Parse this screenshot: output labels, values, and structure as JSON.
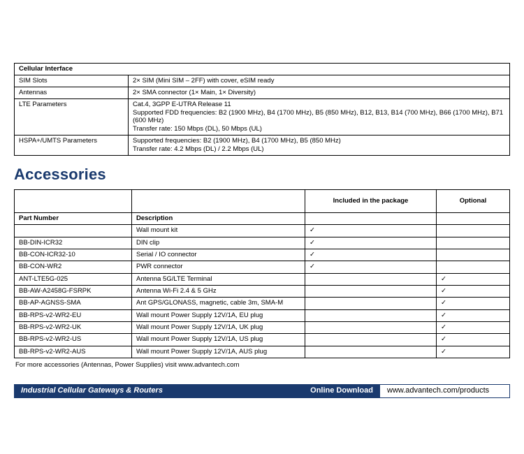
{
  "cellular": {
    "header": "Cellular Interface",
    "rows": [
      {
        "label": "SIM Slots",
        "value": "2× SIM (Mini SIM – 2FF) with cover, eSIM ready"
      },
      {
        "label": "Antennas",
        "value": "2× SMA connector (1× Main, 1× Diversity)"
      },
      {
        "label": "LTE Parameters",
        "value": "Cat.4, 3GPP E-UTRA Release 11\nSupported FDD frequencies: B2 (1900 MHz), B4 (1700 MHz), B5 (850 MHz), B12, B13, B14 (700 MHz), B66 (1700 MHz), B71 (600 MHz)\nTransfer rate: 150 Mbps (DL), 50 Mbps (UL)"
      },
      {
        "label": "HSPA+/UMTS Parameters",
        "value": "Supported frequencies: B2 (1900 MHz), B4 (1700 MHz), B5 (850 MHz)\nTransfer rate: 4.2 Mbps (DL) / 2.2 Mbps (UL)"
      }
    ]
  },
  "accessories": {
    "title": "Accessories",
    "col_included": "Included in the package",
    "col_optional": "Optional",
    "col_pn": "Part Number",
    "col_desc": "Description",
    "rows": [
      {
        "pn": "",
        "desc": "Wall mount kit",
        "inc": "✓",
        "opt": ""
      },
      {
        "pn": "BB-DIN-ICR32",
        "desc": "DIN clip",
        "inc": "✓",
        "opt": ""
      },
      {
        "pn": "BB-CON-ICR32-10",
        "desc": "Serial / IO connector",
        "inc": "✓",
        "opt": ""
      },
      {
        "pn": "BB-CON-WR2",
        "desc": "PWR connector",
        "inc": "✓",
        "opt": ""
      },
      {
        "pn": "ANT-LTE5G-025",
        "desc": "Antenna 5G/LTE Terminal",
        "inc": "",
        "opt": "✓"
      },
      {
        "pn": "BB-AW-A2458G-FSRPK",
        "desc": "Antenna Wi-Fi 2.4 & 5 GHz",
        "inc": "",
        "opt": "✓"
      },
      {
        "pn": "BB-AP-AGNSS-SMA",
        "desc": "Ant GPS/GLONASS, magnetic, cable 3m, SMA-M",
        "inc": "",
        "opt": "✓"
      },
      {
        "pn": "BB-RPS-v2-WR2-EU",
        "desc": "Wall mount Power Supply 12V/1A, EU plug",
        "inc": "",
        "opt": "✓"
      },
      {
        "pn": "BB-RPS-v2-WR2-UK",
        "desc": "Wall mount Power Supply 12V/1A, UK plug",
        "inc": "",
        "opt": "✓"
      },
      {
        "pn": "BB-RPS-v2-WR2-US",
        "desc": "Wall mount Power Supply 12V/1A, US plug",
        "inc": "",
        "opt": "✓"
      },
      {
        "pn": "BB-RPS-v2-WR2-AUS",
        "desc": "Wall mount Power Supply 12V/1A, AUS plug",
        "inc": "",
        "opt": "✓"
      }
    ],
    "footnote": "For more accessories (Antennas, Power Supplies) visit www.advantech.com"
  },
  "footer": {
    "left": "Industrial Cellular Gateways & Routers",
    "mid": "Online Download",
    "right": "www.advantech.com/products"
  }
}
